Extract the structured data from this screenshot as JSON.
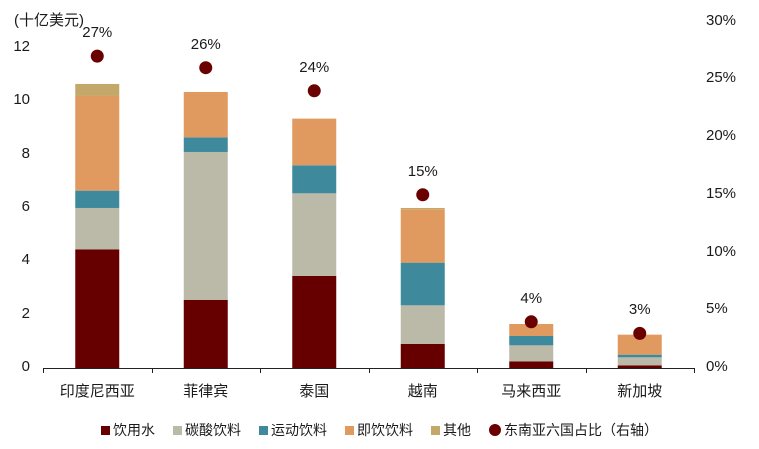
{
  "chart_data": {
    "type": "bar",
    "stacked": true,
    "title": "",
    "ylabel": "(十亿美元)",
    "y2label": "东南亚六国占比（右轴）",
    "categories": [
      "印度尼西亚",
      "菲律宾",
      "泰国",
      "越南",
      "马来西亚",
      "新加坡"
    ],
    "series": [
      {
        "name": "饮用水",
        "color": "#660000",
        "values": [
          4.45,
          2.55,
          3.45,
          0.9,
          0.25,
          0.1
        ]
      },
      {
        "name": "碳酸饮料",
        "color": "#BBB9A8",
        "values": [
          1.55,
          5.55,
          3.1,
          1.45,
          0.6,
          0.3
        ]
      },
      {
        "name": "运动饮料",
        "color": "#3E8A9C",
        "values": [
          0.65,
          0.55,
          1.05,
          1.6,
          0.35,
          0.1
        ]
      },
      {
        "name": "即饮饮料",
        "color": "#E0995F",
        "values": [
          3.55,
          1.7,
          1.75,
          2.0,
          0.45,
          0.75
        ]
      },
      {
        "name": "其他",
        "color": "#C4A86A",
        "values": [
          0.45,
          0.0,
          0.0,
          0.05,
          0.0,
          0.0
        ]
      }
    ],
    "secondary_series": {
      "name": "东南亚六国占比（右轴）",
      "type": "scatter",
      "color": "#6B0000",
      "values": [
        27,
        26,
        24,
        15,
        4,
        3
      ],
      "labels": [
        "27%",
        "26%",
        "24%",
        "15%",
        "4%",
        "3%"
      ]
    },
    "ylim": [
      0,
      13
    ],
    "yticks": [
      0,
      2,
      4,
      6,
      8,
      10,
      12
    ],
    "y2lim": [
      0,
      30
    ],
    "y2ticks": [
      "0%",
      "5%",
      "10%",
      "15%",
      "20%",
      "25%",
      "30%"
    ],
    "grid": false,
    "legend_position": "bottom"
  },
  "axis": {
    "unit_label": "(十亿美元)",
    "left_ticks": [
      "0",
      "2",
      "4",
      "6",
      "8",
      "10",
      "12"
    ],
    "right_ticks": [
      "0%",
      "5%",
      "10%",
      "15%",
      "20%",
      "25%",
      "30%"
    ]
  },
  "legend": [
    {
      "label": "饮用水",
      "color": "#660000",
      "shape": "square"
    },
    {
      "label": "碳酸饮料",
      "color": "#BBB9A8",
      "shape": "square"
    },
    {
      "label": "运动饮料",
      "color": "#3E8A9C",
      "shape": "square"
    },
    {
      "label": "即饮饮料",
      "color": "#E0995F",
      "shape": "square"
    },
    {
      "label": "其他",
      "color": "#C4A86A",
      "shape": "square"
    },
    {
      "label": "东南亚六国占比（右轴）",
      "color": "#6B0000",
      "shape": "circle"
    }
  ]
}
